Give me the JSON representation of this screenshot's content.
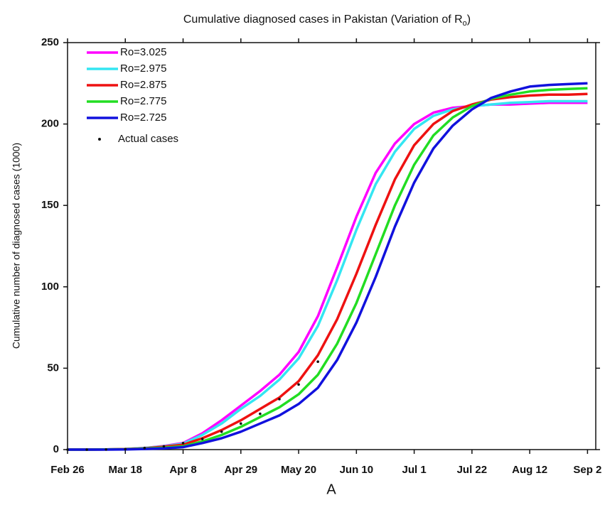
{
  "chart_data": {
    "type": "line",
    "title": [
      {
        "text": "Cumulative diagnosed cases in Pakistan (Variation of R"
      },
      {
        "text": "o",
        "sub": true
      },
      {
        "text": ")"
      }
    ],
    "ylabel": "Cumulative number of diagnosed cases (1000)",
    "caption": "A",
    "x": [
      "Feb 26",
      "Mar 4",
      "Mar 11",
      "Mar 18",
      "Mar 25",
      "Apr 1",
      "Apr 8",
      "Apr 15",
      "Apr 22",
      "Apr 29",
      "May 6",
      "May 13",
      "May 20",
      "May 27",
      "Jun 3",
      "Jun 10",
      "Jun 17",
      "Jun 24",
      "Jul 1",
      "Jul 8",
      "Jul 15",
      "Jul 22",
      "Jul 29",
      "Aug 5",
      "Aug 12",
      "Aug 19",
      "Aug 26",
      "Sep 2"
    ],
    "xlim": [
      "Feb 26",
      "Sep 5"
    ],
    "xticks": [
      "Feb 26",
      "Mar 18",
      "Apr 8",
      "Apr 29",
      "May 20",
      "Jun 10",
      "Jul 1",
      "Jul 22",
      "Aug 12",
      "Sep 2"
    ],
    "ylim": [
      0,
      250
    ],
    "yticks": [
      0,
      50,
      100,
      150,
      200,
      250
    ],
    "legend": "top-left",
    "series": [
      {
        "name": "Ro=3.025",
        "color": "#ff00ff",
        "mode": "line",
        "values": [
          0,
          0,
          0.1,
          0.4,
          1,
          2.2,
          4,
          10,
          18,
          27,
          36,
          46,
          60,
          82,
          112,
          143,
          170,
          188,
          200,
          207,
          210,
          211,
          212,
          212,
          212.5,
          213,
          213,
          213
        ]
      },
      {
        "name": "Ro=2.975",
        "color": "#33e6f2",
        "mode": "line",
        "values": [
          0,
          0,
          0.1,
          0.4,
          1,
          2,
          3.6,
          9,
          16,
          25,
          33,
          43,
          56,
          76,
          104,
          135,
          163,
          183,
          197,
          205,
          209,
          211,
          212,
          213,
          213.5,
          214,
          214,
          214
        ]
      },
      {
        "name": "Ro=2.875",
        "color": "#ee1111",
        "mode": "line",
        "values": [
          0,
          0,
          0.1,
          0.3,
          0.8,
          1.8,
          3,
          7,
          12,
          18,
          25,
          32,
          42,
          58,
          80,
          108,
          138,
          166,
          187,
          200,
          208,
          212,
          215,
          216.5,
          217.5,
          218,
          218,
          218.5
        ]
      },
      {
        "name": "Ro=2.775",
        "color": "#22dd22",
        "mode": "line",
        "values": [
          0,
          0,
          0.1,
          0.2,
          0.6,
          1.2,
          2,
          5,
          9,
          14,
          20,
          26,
          34,
          46,
          65,
          90,
          120,
          150,
          175,
          193,
          204,
          211,
          215.5,
          218,
          220,
          221,
          221.5,
          222
        ]
      },
      {
        "name": "Ro=2.725",
        "color": "#1111dd",
        "mode": "line",
        "values": [
          0,
          0,
          0,
          0.1,
          0.4,
          0.8,
          1.5,
          4,
          7,
          11,
          16,
          21,
          28,
          38,
          55,
          78,
          106,
          137,
          164,
          185,
          199,
          209,
          216,
          220,
          223,
          224,
          224.5,
          225
        ]
      },
      {
        "name": "Actual cases",
        "color": "#111111",
        "mode": "markers",
        "values": [
          0,
          0,
          0.1,
          0.3,
          1,
          2,
          4,
          6.5,
          11,
          16,
          22,
          31,
          40,
          54,
          null,
          null,
          null,
          null,
          null,
          null,
          null,
          null,
          null,
          null,
          null,
          null,
          null,
          null
        ]
      }
    ]
  }
}
